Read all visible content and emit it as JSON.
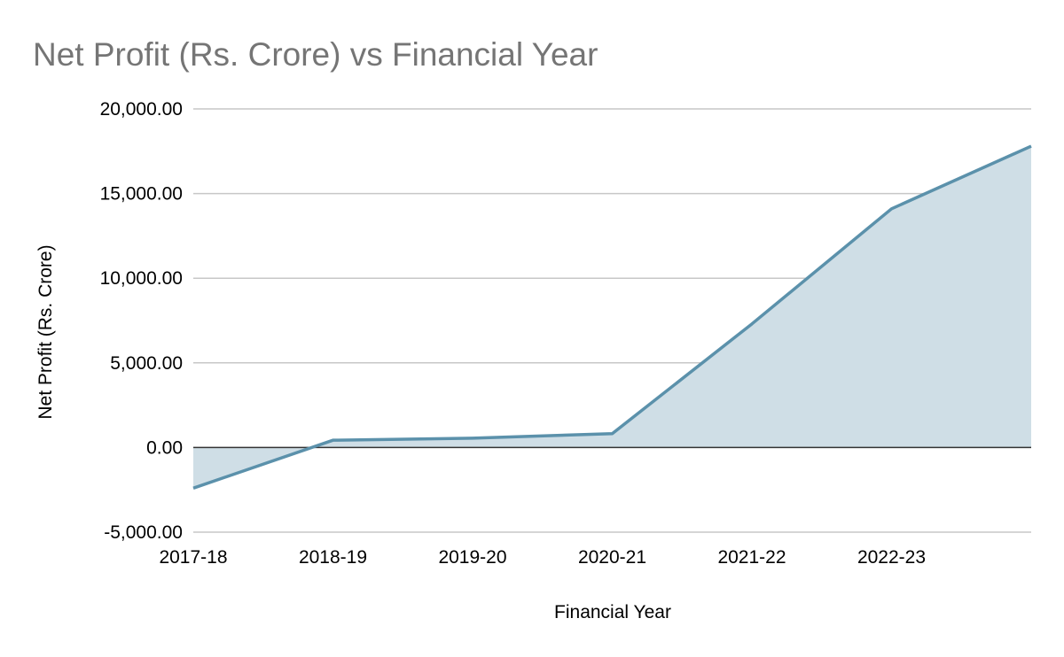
{
  "chart_data": {
    "type": "area",
    "title": "Net Profit (Rs. Crore) vs Financial Year",
    "xlabel": "Financial Year",
    "ylabel": "Net Profit (Rs. Crore)",
    "categories": [
      "2017-18",
      "2018-19",
      "2019-20",
      "2020-21",
      "2021-22",
      "2022-23",
      ""
    ],
    "series": [
      {
        "values": [
          -2400,
          430,
          550,
          820,
          7300,
          14100,
          17800
        ]
      }
    ],
    "ylim": [
      -5000,
      20000
    ],
    "yticks": [
      -5000,
      0,
      5000,
      10000,
      15000,
      20000
    ],
    "ytick_labels": [
      "-5,000.00",
      "0.00",
      "5,000.00",
      "10,000.00",
      "15,000.00",
      "20,000.00"
    ],
    "grid": true,
    "legend": "none",
    "colors": {
      "line": "#5b91ab",
      "fill": "#cfdee6",
      "title": "#757575"
    }
  }
}
